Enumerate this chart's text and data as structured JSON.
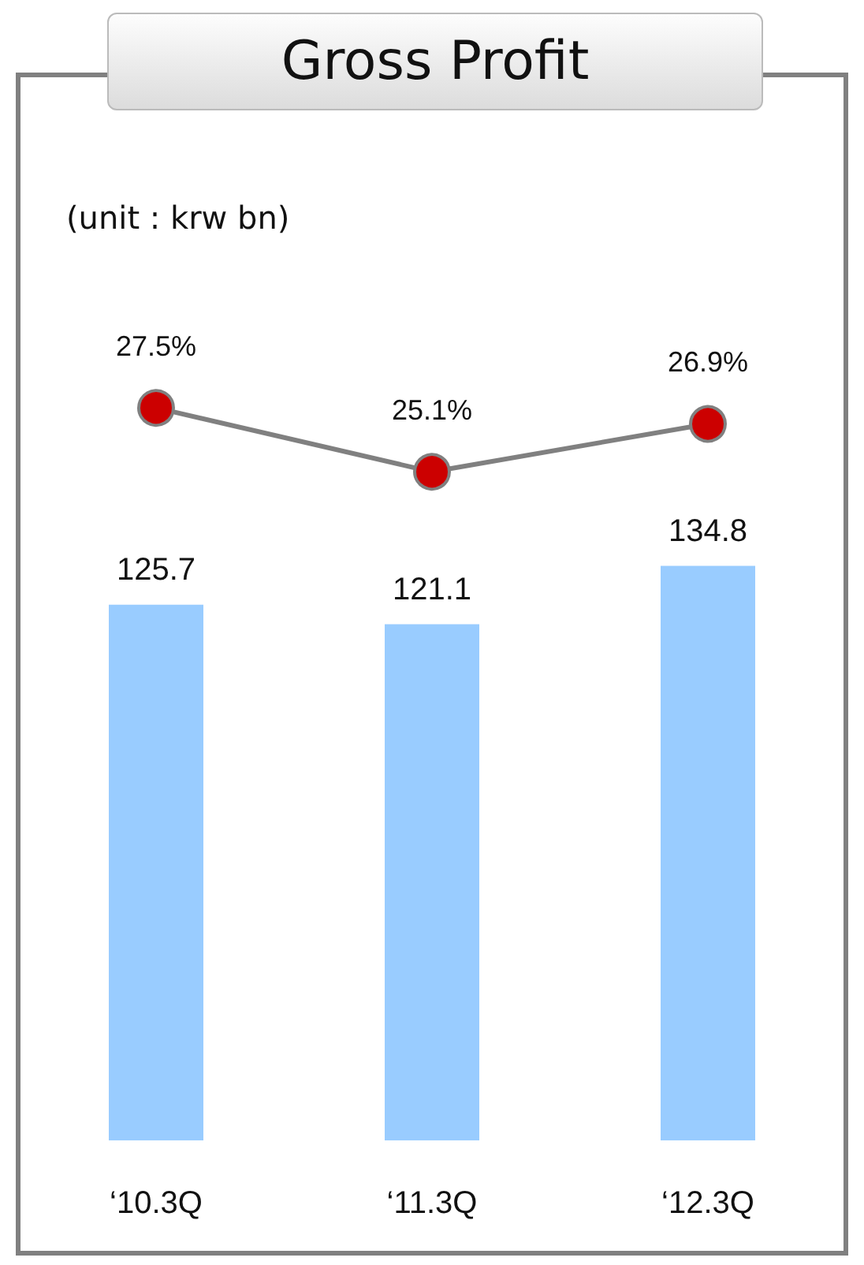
{
  "chart_data": {
    "type": "bar",
    "title": "Gross Profit",
    "annotations": [
      "(unit : krw bn)"
    ],
    "categories": [
      "‘10.3Q",
      "‘11.3Q",
      "‘12.3Q"
    ],
    "series": [
      {
        "color": "#99ccff",
        "values": [
          125.7,
          121.1,
          134.8
        ]
      },
      {
        "type": "line",
        "axis": "y2",
        "color": "#cc0000",
        "values": [
          27.5,
          25.1,
          26.9
        ],
        "value_labels": [
          "27.5%",
          "25.1%",
          "26.9%"
        ]
      }
    ],
    "ylim": [
      0,
      250
    ],
    "y2lim": [
      0,
      40
    ],
    "data_labels": true,
    "tick_labels": "x",
    "grid": false,
    "marker": "circle"
  }
}
